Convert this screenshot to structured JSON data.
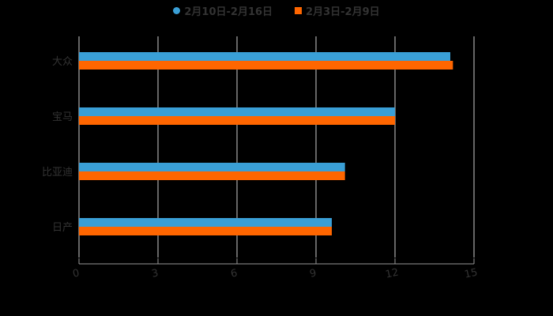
{
  "chart_data": {
    "type": "bar",
    "orientation": "horizontal",
    "title": "",
    "categories": [
      "大众",
      "宝马",
      "比亚迪",
      "日产"
    ],
    "series": [
      {
        "name": "2月10日-2月16日",
        "color": "#3a9fd6",
        "values": [
          14.1,
          12.0,
          10.1,
          9.6
        ]
      },
      {
        "name": "2月3日-2月9日",
        "color": "#ff6600",
        "values": [
          14.2,
          12.0,
          10.1,
          9.6
        ]
      }
    ],
    "xlabel": "",
    "ylabel": "",
    "xlim": [
      0,
      15
    ],
    "xticks": [
      "0",
      "3",
      "6",
      "9",
      "12",
      "15"
    ],
    "grid": true,
    "legend_position": "top"
  },
  "legend": {
    "items": [
      {
        "label": "2月10日-2月16日",
        "color": "#3a9fd6"
      },
      {
        "label": "2月3日-2月9日",
        "color": "#ff6600"
      }
    ]
  }
}
